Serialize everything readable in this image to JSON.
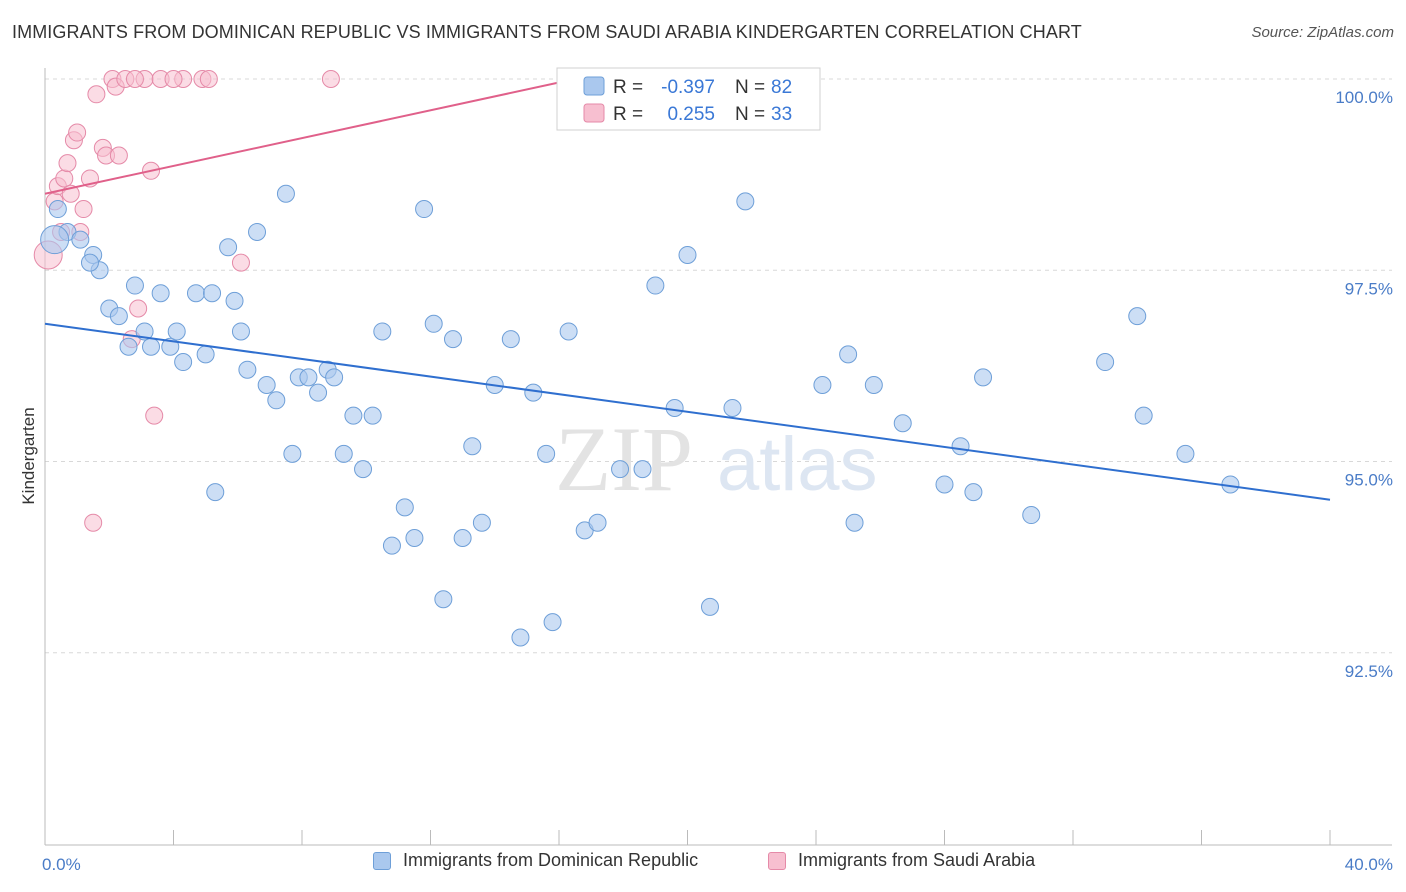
{
  "title": "IMMIGRANTS FROM DOMINICAN REPUBLIC VS IMMIGRANTS FROM SAUDI ARABIA KINDERGARTEN CORRELATION CHART",
  "source": "Source: ZipAtlas.com",
  "watermark": {
    "zip": "ZIP",
    "atlas": "atlas"
  },
  "colors": {
    "blue_fill": "#aac8ee",
    "blue_stroke": "#6e9fd8",
    "blue_line": "#2f6fcf",
    "pink_fill": "#f7bfd0",
    "pink_stroke": "#e58aa8",
    "pink_line": "#e0608a",
    "tick_text": "#4a7cc7",
    "grid": "#d8d8d8"
  },
  "legend": {
    "row1": {
      "r_label": "R =",
      "r_value": "-0.397",
      "n_label": "N =",
      "n_value": "82"
    },
    "row2": {
      "r_label": "R =",
      "r_value": "0.255",
      "n_label": "N =",
      "n_value": "33"
    }
  },
  "bottom_legend": {
    "series1": "Immigrants from Dominican Republic",
    "series2": "Immigrants from Saudi Arabia"
  },
  "chart_data": {
    "type": "scatter",
    "title": "IMMIGRANTS FROM DOMINICAN REPUBLIC VS IMMIGRANTS FROM SAUDI ARABIA KINDERGARTEN CORRELATION CHART",
    "xlabel": "",
    "ylabel": "Kindergarten",
    "xlim": [
      0,
      40
    ],
    "ylim": [
      90.0,
      100.0
    ],
    "x_tick_labels": [
      {
        "value": 0,
        "label": "0.0%"
      },
      {
        "value": 40,
        "label": "40.0%"
      }
    ],
    "y_tick_labels": [
      {
        "value": 100.0,
        "label": "100.0%"
      },
      {
        "value": 97.5,
        "label": "97.5%"
      },
      {
        "value": 95.0,
        "label": "95.0%"
      },
      {
        "value": 92.5,
        "label": "92.5%"
      }
    ],
    "series": [
      {
        "name": "Immigrants from Dominican Republic",
        "color": "blue",
        "trend": {
          "x": [
            0,
            40
          ],
          "y": [
            96.8,
            94.5
          ]
        },
        "points": [
          [
            0.4,
            98.3
          ],
          [
            0.7,
            98.0
          ],
          [
            1.1,
            97.9
          ],
          [
            1.5,
            97.7
          ],
          [
            1.7,
            97.5
          ],
          [
            2.0,
            97.0
          ],
          [
            2.3,
            96.9
          ],
          [
            2.6,
            96.5
          ],
          [
            2.8,
            97.3
          ],
          [
            3.1,
            96.7
          ],
          [
            3.3,
            96.5
          ],
          [
            3.6,
            97.2
          ],
          [
            3.9,
            96.5
          ],
          [
            4.1,
            96.7
          ],
          [
            4.3,
            96.3
          ],
          [
            4.7,
            97.2
          ],
          [
            5.0,
            96.4
          ],
          [
            5.2,
            97.2
          ],
          [
            5.3,
            94.6
          ],
          [
            5.7,
            97.8
          ],
          [
            5.9,
            97.1
          ],
          [
            6.1,
            96.7
          ],
          [
            6.3,
            96.2
          ],
          [
            6.6,
            98.0
          ],
          [
            6.9,
            96.0
          ],
          [
            7.2,
            95.8
          ],
          [
            7.5,
            98.5
          ],
          [
            7.7,
            95.1
          ],
          [
            7.9,
            96.1
          ],
          [
            8.2,
            96.1
          ],
          [
            8.5,
            95.9
          ],
          [
            8.8,
            96.2
          ],
          [
            9.0,
            96.1
          ],
          [
            9.3,
            95.1
          ],
          [
            9.6,
            95.6
          ],
          [
            9.9,
            94.9
          ],
          [
            10.2,
            95.6
          ],
          [
            10.5,
            96.7
          ],
          [
            10.8,
            93.9
          ],
          [
            11.2,
            94.4
          ],
          [
            11.5,
            94.0
          ],
          [
            11.8,
            98.3
          ],
          [
            12.1,
            96.8
          ],
          [
            12.4,
            93.2
          ],
          [
            12.7,
            96.6
          ],
          [
            13.0,
            94.0
          ],
          [
            13.3,
            95.2
          ],
          [
            13.6,
            94.2
          ],
          [
            14.0,
            96.0
          ],
          [
            14.5,
            96.6
          ],
          [
            14.8,
            92.7
          ],
          [
            15.2,
            95.9
          ],
          [
            15.6,
            95.1
          ],
          [
            15.8,
            92.9
          ],
          [
            16.3,
            96.7
          ],
          [
            16.8,
            94.1
          ],
          [
            17.2,
            94.2
          ],
          [
            17.9,
            94.9
          ],
          [
            18.6,
            94.9
          ],
          [
            19.0,
            97.3
          ],
          [
            19.6,
            95.7
          ],
          [
            20.0,
            97.7
          ],
          [
            20.7,
            93.1
          ],
          [
            21.4,
            95.7
          ],
          [
            21.8,
            98.4
          ],
          [
            24.2,
            96.0
          ],
          [
            25.0,
            96.4
          ],
          [
            25.2,
            94.2
          ],
          [
            25.8,
            96.0
          ],
          [
            26.7,
            95.5
          ],
          [
            28.0,
            94.7
          ],
          [
            28.5,
            95.2
          ],
          [
            28.9,
            94.6
          ],
          [
            29.2,
            96.1
          ],
          [
            30.7,
            94.3
          ],
          [
            33.0,
            96.3
          ],
          [
            34.0,
            96.9
          ],
          [
            34.2,
            95.6
          ],
          [
            35.5,
            95.1
          ],
          [
            36.9,
            94.7
          ],
          [
            0.3,
            97.9
          ],
          [
            1.4,
            97.6
          ]
        ]
      },
      {
        "name": "Immigrants from Saudi Arabia",
        "color": "pink",
        "trend": {
          "x": [
            0,
            16.5
          ],
          "y": [
            98.5,
            100.0
          ]
        },
        "points": [
          [
            0.1,
            97.7
          ],
          [
            0.3,
            98.4
          ],
          [
            0.4,
            98.6
          ],
          [
            0.6,
            98.7
          ],
          [
            0.7,
            98.9
          ],
          [
            0.8,
            98.5
          ],
          [
            0.9,
            99.2
          ],
          [
            1.0,
            99.3
          ],
          [
            1.1,
            98.0
          ],
          [
            1.2,
            98.3
          ],
          [
            1.4,
            98.7
          ],
          [
            1.6,
            99.8
          ],
          [
            1.8,
            99.1
          ],
          [
            1.9,
            99.0
          ],
          [
            2.1,
            100.0
          ],
          [
            2.2,
            99.9
          ],
          [
            2.3,
            99.0
          ],
          [
            2.5,
            100.0
          ],
          [
            2.7,
            96.6
          ],
          [
            2.9,
            97.0
          ],
          [
            3.1,
            100.0
          ],
          [
            3.3,
            98.8
          ],
          [
            3.4,
            95.6
          ],
          [
            3.6,
            100.0
          ],
          [
            4.3,
            100.0
          ],
          [
            4.9,
            100.0
          ],
          [
            5.1,
            100.0
          ],
          [
            6.1,
            97.6
          ],
          [
            8.9,
            100.0
          ],
          [
            2.8,
            100.0
          ],
          [
            1.5,
            94.2
          ],
          [
            0.5,
            98.0
          ],
          [
            4.0,
            100.0
          ]
        ]
      }
    ]
  }
}
